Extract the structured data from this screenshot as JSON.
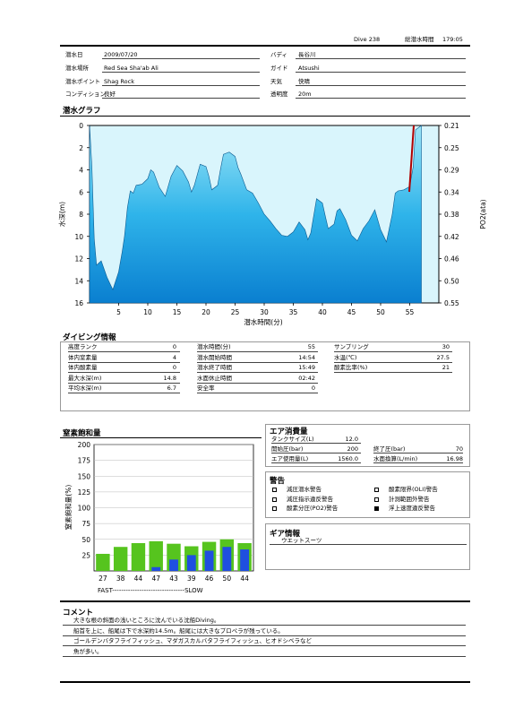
{
  "header": {
    "dive_no": "Dive 238",
    "total_time_label": "総潜水時間",
    "total_time": "179:05"
  },
  "info": {
    "date_label": "潜水日",
    "date": "2009/07/20",
    "location_label": "潜水場所",
    "location": "Red Sea Sha'ab Ali",
    "point_label": "潜水ポイント",
    "point": "Shag Rock",
    "condition_label": "コンディション",
    "condition": "良好",
    "buddy_label": "バディ",
    "buddy": "長谷川",
    "guide_label": "ガイド",
    "guide": "Atsushi",
    "weather_label": "天気",
    "weather": "快晴",
    "visibility_label": "透明度",
    "visibility": "20m"
  },
  "dive_graph": {
    "title": "潜水グラフ",
    "xlabel": "潜水時間(分)",
    "ylabel": "水深(m)",
    "y2label": "PO2(ata)",
    "x_ticks": [
      "5",
      "10",
      "15",
      "20",
      "25",
      "30",
      "35",
      "40",
      "45",
      "50",
      "55"
    ],
    "y_ticks": [
      "0",
      "2",
      "4",
      "6",
      "8",
      "10",
      "12",
      "14",
      "16"
    ],
    "y2_ticks": [
      "0.21",
      "0.25",
      "0.29",
      "0.34",
      "0.38",
      "0.42",
      "0.46",
      "0.50",
      "0.55"
    ]
  },
  "chart_data": [
    {
      "type": "area",
      "title": "潜水グラフ",
      "xlabel": "潜水時間(分)",
      "ylabel": "水深(m)",
      "y2label": "PO2(ata)",
      "xlim": [
        0,
        60
      ],
      "ylim": [
        0,
        16
      ],
      "y2lim": [
        0.21,
        0.55
      ],
      "series": [
        {
          "x": [
            0,
            0.4,
            0.8,
            1.2,
            2,
            3,
            4,
            5,
            5.6,
            6,
            6.5,
            7,
            7.5,
            8,
            9,
            10,
            10.5,
            11,
            12,
            13,
            14,
            15,
            16,
            17,
            17.5,
            18,
            19,
            20,
            20.5,
            21,
            22,
            22.5,
            23,
            24,
            25,
            25.5,
            26,
            27,
            28,
            29,
            30,
            31,
            32,
            33,
            34,
            35,
            36,
            37,
            37.5,
            38,
            39,
            40,
            40.5,
            41,
            42,
            42.5,
            43,
            44,
            45,
            46,
            47,
            48,
            49,
            50,
            51,
            52,
            52.5,
            53,
            54,
            55,
            55.6,
            56,
            57
          ],
          "y": [
            0,
            3.7,
            10.2,
            12.6,
            12.2,
            13.7,
            14.8,
            13.2,
            11.4,
            10.0,
            7.4,
            5.9,
            6.1,
            5.4,
            5.3,
            4.8,
            4.0,
            4.2,
            5.6,
            6.4,
            4.6,
            3.6,
            4.1,
            5.1,
            6.0,
            5.4,
            3.5,
            3.7,
            4.6,
            5.8,
            5.4,
            3.9,
            2.6,
            2.4,
            2.8,
            3.8,
            4.4,
            5.8,
            6.1,
            7.0,
            8.0,
            8.6,
            9.3,
            9.9,
            10.0,
            9.6,
            8.7,
            9.4,
            10.3,
            9.7,
            6.6,
            7.0,
            8.2,
            9.3,
            8.9,
            7.7,
            7.5,
            8.5,
            9.9,
            10.4,
            9.3,
            8.6,
            7.6,
            9.4,
            10.5,
            8.0,
            6.1,
            5.9,
            5.8,
            5.5,
            3.7,
            0.4,
            0
          ]
        }
      ]
    },
    {
      "type": "bar",
      "title": "窒素飽和量",
      "ylim": [
        0,
        200
      ],
      "categories": [
        "27",
        "38",
        "44",
        "47",
        "43",
        "39",
        "46",
        "50",
        "44"
      ],
      "series": [
        {
          "values": [
            27,
            38,
            44,
            47,
            43,
            39,
            46,
            50,
            44
          ]
        },
        {
          "values": [
            0,
            0,
            0,
            6,
            18,
            25,
            32,
            38,
            34
          ]
        }
      ]
    }
  ],
  "diving_info": {
    "title": "ダイビング情報",
    "col1": [
      {
        "label": "高度ランク",
        "value": "0"
      },
      {
        "label": "体内窒素量",
        "value": "4"
      },
      {
        "label": "体内酸素量",
        "value": "0"
      },
      {
        "label": "最大水深(m)",
        "value": "14.8"
      },
      {
        "label": "平均水深(m)",
        "value": "6.7"
      }
    ],
    "col2": [
      {
        "label": "潜水時間(分)",
        "value": "55"
      },
      {
        "label": "潜水開始時間",
        "value": "14:54"
      },
      {
        "label": "潜水終了時間",
        "value": "15:49"
      },
      {
        "label": "水面休止時間",
        "value": "02:42"
      },
      {
        "label": "安全率",
        "value": "0"
      }
    ],
    "col3": [
      {
        "label": "サンプリング",
        "value": "30"
      },
      {
        "label": "水温(℃)",
        "value": "27.5"
      },
      {
        "label": "酸素比率(%)",
        "value": "21"
      }
    ]
  },
  "nitrogen": {
    "title": "窒素飽和量",
    "ylabel": "窒素飽和量(%)",
    "y_ticks": [
      "200",
      "175",
      "150",
      "125",
      "100",
      "75",
      "50",
      "25"
    ],
    "fast_slow": "FAST--------------------------------SLOW"
  },
  "air": {
    "title": "エア消費量",
    "tank_label": "タンクサイズ(L)",
    "tank": "12.0",
    "start_label": "開始圧(bar)",
    "start": "200",
    "end_label": "終了圧(bar)",
    "end": "70",
    "used_label": "エア使用量(L)",
    "used": "1560.0",
    "surface_label": "水面換算(L/min)",
    "surface": "16.98"
  },
  "warnings": {
    "title": "警告",
    "items": [
      {
        "label": "減圧潜水警告",
        "checked": false
      },
      {
        "label": "酸素限界(OLI)警告",
        "checked": false
      },
      {
        "label": "減圧指示違反警告",
        "checked": false
      },
      {
        "label": "計測範囲外警告",
        "checked": false
      },
      {
        "label": "酸素分圧(PO2)警告",
        "checked": false
      },
      {
        "label": "浮上速度違反警告",
        "checked": true
      }
    ]
  },
  "gear": {
    "title": "ギア情報",
    "items": "ウエットスーツ"
  },
  "comment": {
    "title": "コメント",
    "lines": [
      "大きな根の斜面の浅いところに沈んでいる沈船Diving。",
      "船首を上に、船尾は下で水深約14.5m。船尾には大きなプロペラが残っている。",
      "ゴールデンバタフライフィッシュ、マダガスカルバタフライフィッシュ、ヒオドシベラなど",
      "魚が多い。"
    ]
  },
  "colors": {
    "graph_top": "#d9f5fc",
    "graph_bottom": "#0a8fd8",
    "air": "#c6f0fb",
    "nitrogen": "#56c41e",
    "oxygen": "#1f4fe0",
    "ascent": "#b00000"
  }
}
